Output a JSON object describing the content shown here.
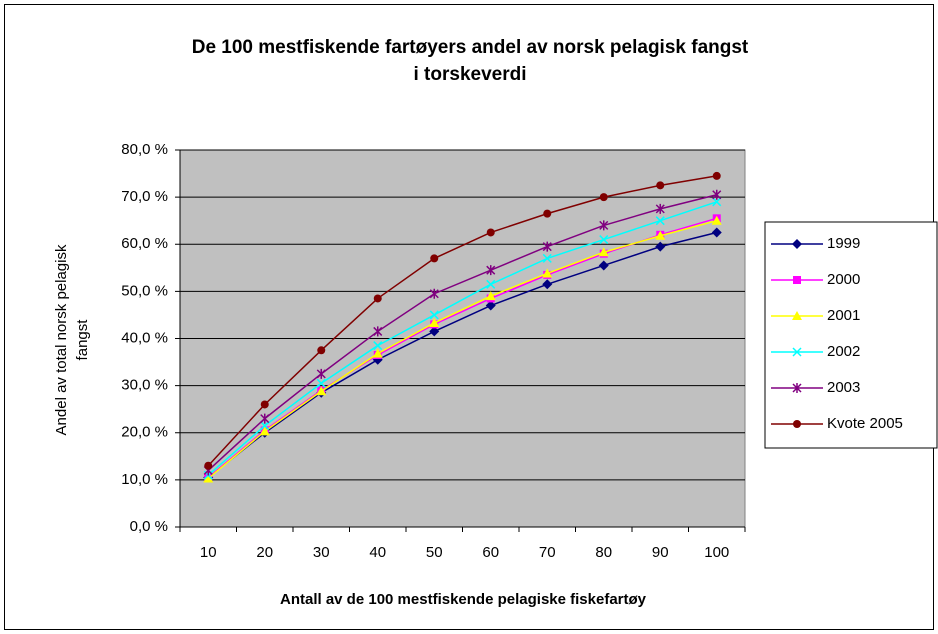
{
  "chart_data": {
    "type": "line",
    "title": [
      "De 100 mestfiskende fartøyers andel av norsk pelagisk fangst",
      "i torskeverdi"
    ],
    "x_label": "Antall av de 100 mestfiskende pelagiske fiskefartøy",
    "y_label": [
      "Andel av total norsk pelagisk",
      "fangst"
    ],
    "categories": [
      "10",
      "20",
      "30",
      "40",
      "50",
      "60",
      "70",
      "80",
      "90",
      "100"
    ],
    "ylim": [
      0,
      80
    ],
    "yticks": [
      {
        "value": 0,
        "label": "0,0 %"
      },
      {
        "value": 10,
        "label": "10,0 %"
      },
      {
        "value": 20,
        "label": "20,0 %"
      },
      {
        "value": 30,
        "label": "30,0 %"
      },
      {
        "value": 40,
        "label": "40,0 %"
      },
      {
        "value": 50,
        "label": "50,0 %"
      },
      {
        "value": 60,
        "label": "60,0 %"
      },
      {
        "value": 70,
        "label": "70,0 %"
      },
      {
        "value": 80,
        "label": "80,0 %"
      }
    ],
    "grid": true,
    "legend": "right",
    "series": [
      {
        "name": "1999",
        "color": "#000080",
        "marker": "diamond",
        "values": [
          10.5,
          20,
          28.5,
          35.5,
          41.5,
          47,
          51.5,
          55.5,
          59.5,
          62.5
        ]
      },
      {
        "name": "2000",
        "color": "#ff00ff",
        "marker": "square",
        "values": [
          10.5,
          20.5,
          29,
          36.5,
          43,
          48.5,
          53.5,
          58,
          62,
          65.5
        ]
      },
      {
        "name": "2001",
        "color": "#ffff00",
        "marker": "triangle",
        "values": [
          10.3,
          20.3,
          28.8,
          36.8,
          43.3,
          49,
          53.8,
          58.3,
          61.8,
          65
        ]
      },
      {
        "name": "2002",
        "color": "#00ffff",
        "marker": "x",
        "values": [
          11,
          21.5,
          30.5,
          38.5,
          45,
          51.5,
          57,
          61,
          65,
          69
        ]
      },
      {
        "name": "2003",
        "color": "#800080",
        "marker": "star",
        "values": [
          12,
          23,
          32.5,
          41.5,
          49.5,
          54.5,
          59.5,
          64,
          67.5,
          70.5
        ]
      },
      {
        "name": "Kvote 2005",
        "color": "#800000",
        "marker": "circle",
        "values": [
          13,
          26,
          37.5,
          48.5,
          57,
          62.5,
          66.5,
          70,
          72.5,
          74.5
        ]
      }
    ]
  }
}
